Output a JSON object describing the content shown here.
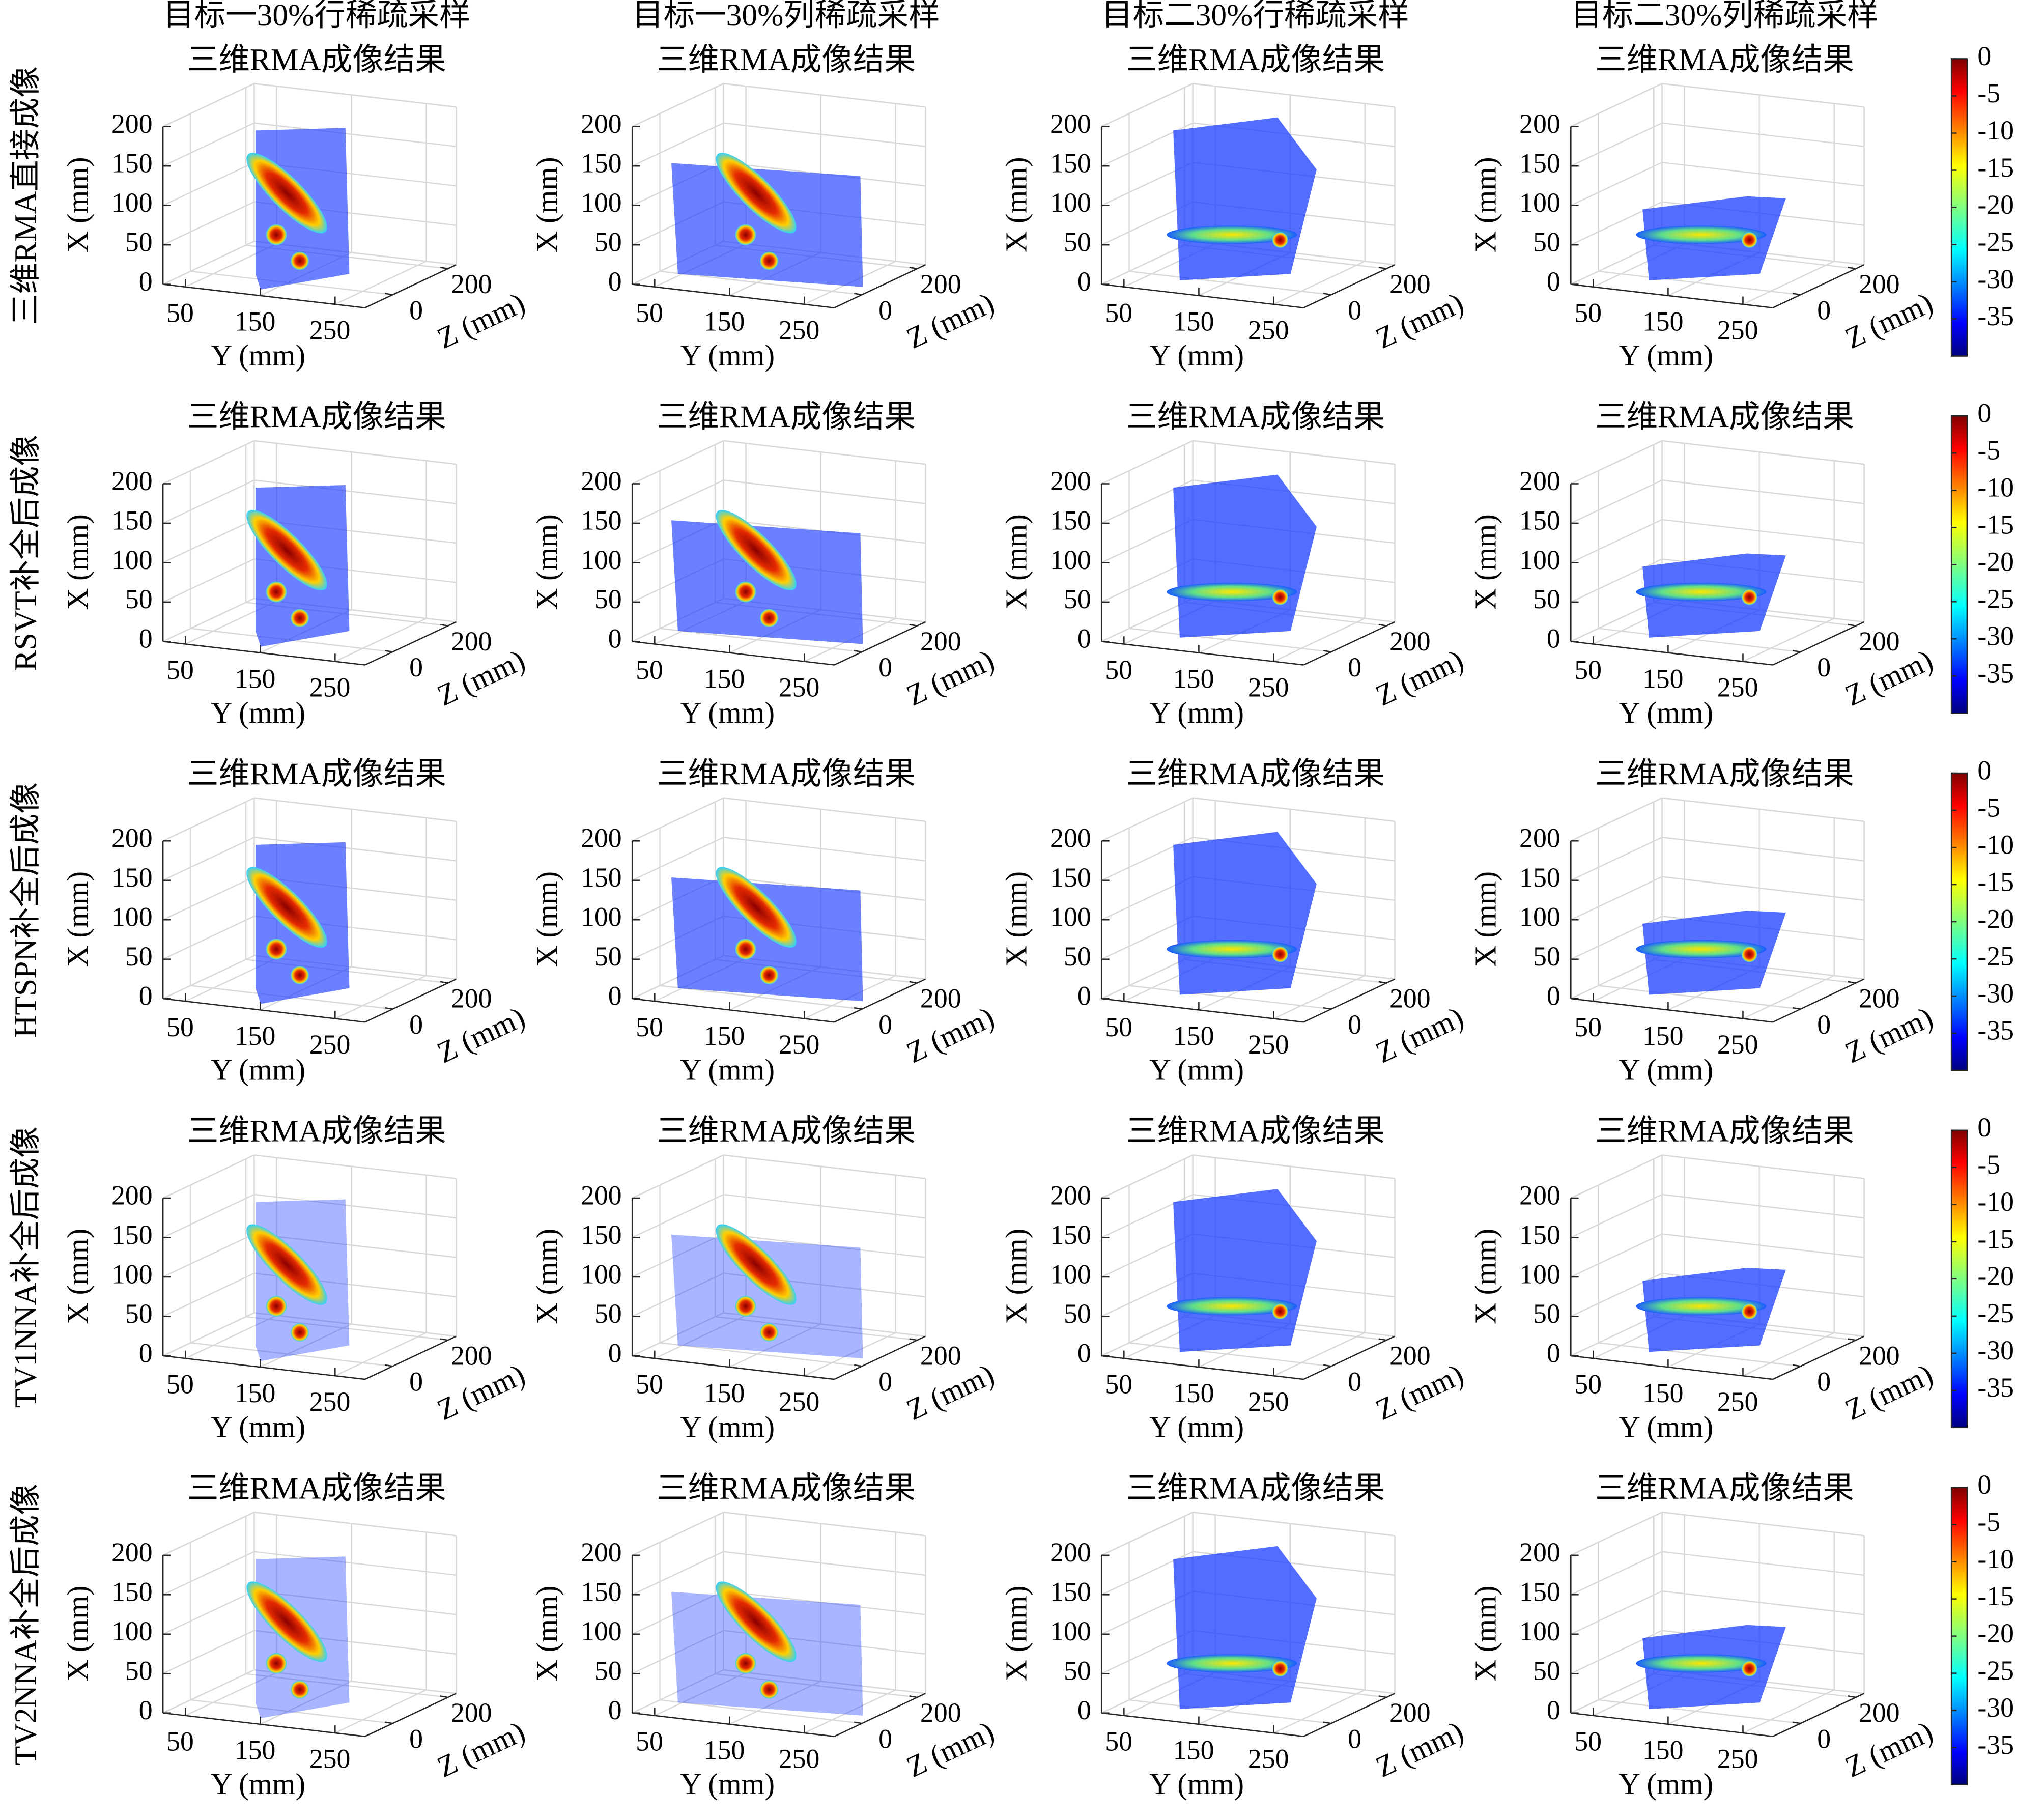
{
  "figure": {
    "columns": [
      "目标一30%行稀疏采样",
      "目标一30%列稀疏采样",
      "目标二30%行稀疏采样",
      "目标二30%列稀疏采样"
    ],
    "rows": [
      "三维RMA直接成像",
      "RSVT补全后成像",
      "HTSPN补全后成像",
      "TV1NNA补全后成像",
      "TV2NNA补全后成像"
    ],
    "panel_title": "三维RMA成像结果",
    "xlabel": "X (mm)",
    "ylabel": "Y (mm)",
    "zlabel": "Z (mm)",
    "xlim": [
      0,
      200
    ],
    "xticks": [
      0,
      50,
      100,
      150,
      200
    ],
    "ylim": [
      20,
      290
    ],
    "yticks": [
      50,
      150,
      250
    ],
    "zlim": [
      -100,
      230
    ],
    "zticks": [
      0,
      200
    ],
    "colorbar": {
      "lim": [
        -40,
        0
      ],
      "ticks": [
        0,
        -5,
        -10,
        -15,
        -20,
        -25,
        -30,
        -35
      ]
    }
  }
}
